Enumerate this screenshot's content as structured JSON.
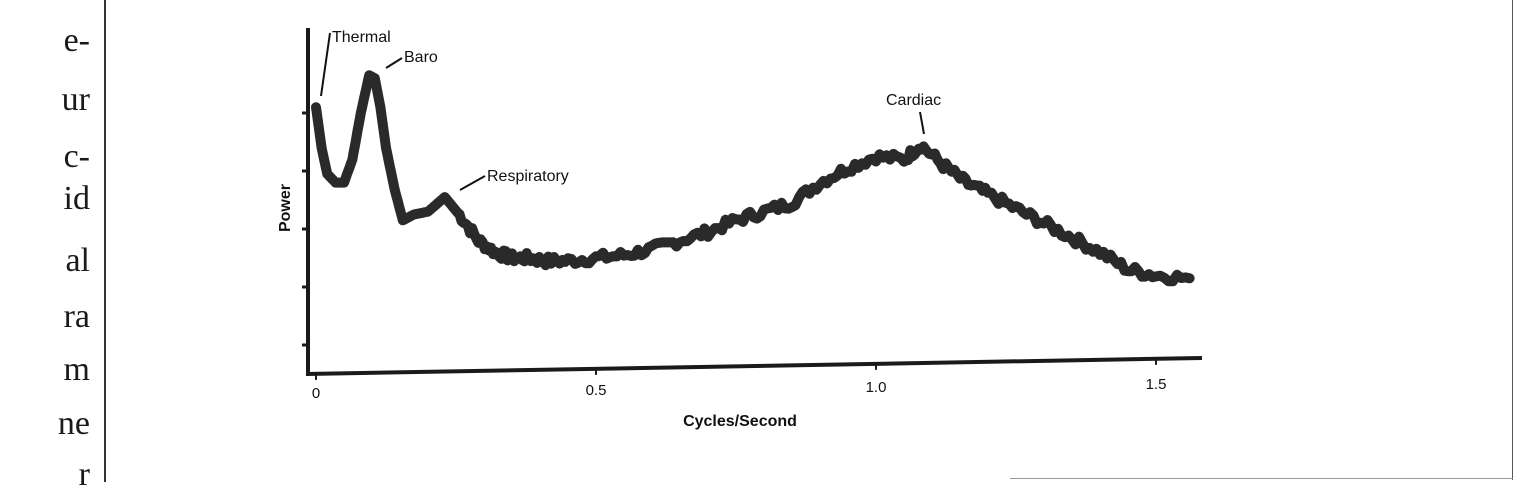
{
  "left_text": [
    "e-",
    "ur",
    "c-",
    "id",
    "al",
    "ra",
    "m",
    "ne",
    "r"
  ],
  "chart_data": {
    "type": "line",
    "xlabel": "Cycles/Second",
    "ylabel": "Power",
    "xlim": [
      0,
      1.58
    ],
    "ylim": [
      0,
      10
    ],
    "xticks": [
      0,
      0.5,
      1.0,
      1.5
    ],
    "xtick_labels": [
      "0",
      "0.5",
      "1.0",
      "1.5"
    ],
    "ytick_values": [
      1,
      3,
      5,
      7,
      9
    ],
    "grid": false,
    "annotations": [
      {
        "text": "Thermal",
        "x": 0.0,
        "y": 9.2
      },
      {
        "text": "Baro",
        "x": 0.105,
        "y": 10.2
      },
      {
        "text": "Respiratory",
        "x": 0.23,
        "y": 6.1
      },
      {
        "text": "Cardiac",
        "x": 1.08,
        "y": 7.9
      }
    ],
    "series": [
      {
        "x": [
          0,
          0.01,
          0.02,
          0.035,
          0.05,
          0.065,
          0.08,
          0.095,
          0.105,
          0.115,
          0.125,
          0.14,
          0.155,
          0.175,
          0.2,
          0.23,
          0.26,
          0.29,
          0.32,
          0.35,
          0.38,
          0.41,
          0.45,
          0.5,
          0.55,
          0.6,
          0.65,
          0.7,
          0.75,
          0.8,
          0.85,
          0.9,
          0.95,
          1.0,
          1.05,
          1.08,
          1.12,
          1.16,
          1.2,
          1.25,
          1.3,
          1.35,
          1.4,
          1.45,
          1.5,
          1.56
        ],
        "y": [
          9.2,
          7.8,
          6.9,
          6.6,
          6.6,
          7.4,
          9.0,
          10.3,
          10.2,
          9.2,
          7.8,
          6.4,
          5.3,
          5.5,
          5.6,
          6.1,
          5.4,
          4.6,
          4.2,
          4.0,
          4.0,
          3.9,
          3.9,
          4.0,
          4.1,
          4.3,
          4.6,
          4.9,
          5.3,
          5.6,
          5.9,
          6.6,
          7.1,
          7.5,
          7.4,
          7.9,
          7.2,
          6.6,
          6.2,
          5.7,
          5.2,
          4.7,
          4.2,
          3.6,
          3.4,
          3.3
        ]
      }
    ]
  }
}
